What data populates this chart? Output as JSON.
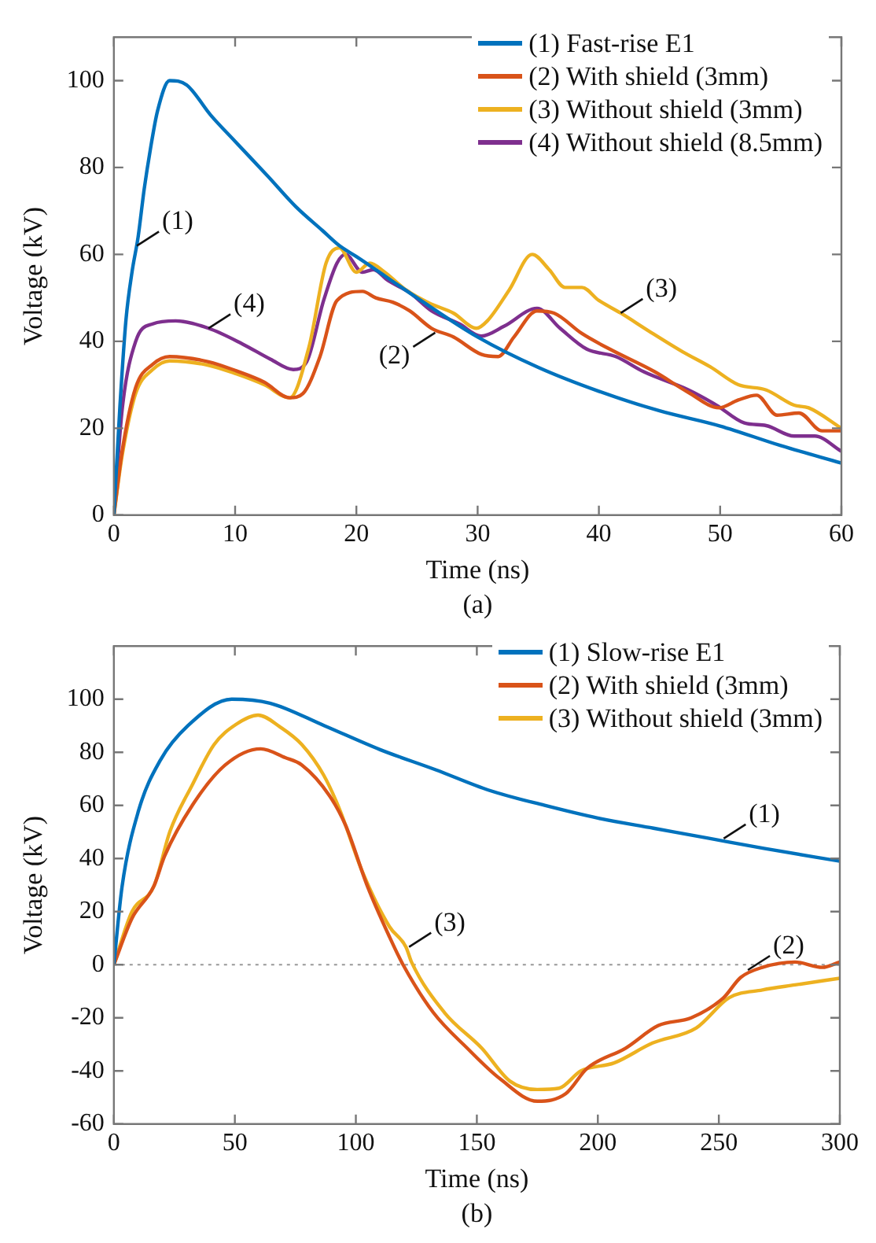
{
  "chart_data": [
    {
      "type": "line",
      "xlabel": "Time (ns)",
      "ylabel": "Voltage (kV)",
      "xlim": [
        0,
        60
      ],
      "xticks": [
        0,
        10,
        20,
        30,
        40,
        50,
        60
      ],
      "ylim": [
        0,
        110
      ],
      "yticks": [
        0,
        20,
        40,
        60,
        80,
        100
      ],
      "grid": false,
      "legend": "top right",
      "marker": "none",
      "line_style": "solid",
      "annotations": [
        {
          "text": "(1)",
          "x": 1.9,
          "y": 62
        },
        {
          "text": "(4)",
          "x": 7.8,
          "y": 43
        },
        {
          "text": "(2)",
          "x": 26.5,
          "y": 42
        },
        {
          "text": "(3)",
          "x": 41.8,
          "y": 46.5
        },
        "(a)"
      ],
      "series": [
        {
          "name": "(1) Fast-rise E1",
          "color": "#0072bd",
          "x": [
            0,
            0.5,
            1,
            1.5,
            2,
            2.5,
            3,
            3.6,
            4.6,
            6,
            8,
            10,
            12.7,
            15,
            17.2,
            18.6,
            20,
            25,
            30,
            35,
            40,
            45,
            50,
            55,
            60
          ],
          "values": [
            0,
            25,
            45,
            56,
            64,
            75,
            84,
            93,
            100,
            99,
            92,
            86,
            78,
            71,
            65.5,
            62,
            59.5,
            50,
            41,
            34,
            28.5,
            24,
            20.5,
            16,
            12
          ]
        },
        {
          "name": "(2) With shield (3mm)",
          "color": "#d95319",
          "x": [
            0,
            0.7,
            1.8,
            3.2,
            4.6,
            7.8,
            10.1,
            12.4,
            14.5,
            15.6,
            17,
            18.4,
            20.5,
            21.6,
            23,
            24.4,
            26.2,
            28,
            30.3,
            31.7,
            33,
            34.9,
            36.3,
            38.6,
            40.9,
            44.6,
            47.4,
            49.9,
            51.5,
            53,
            54.7,
            56.5,
            58.4,
            60
          ],
          "values": [
            0,
            15,
            29.4,
            34.7,
            36.5,
            35.3,
            33.2,
            30.6,
            27,
            28,
            36.5,
            49.4,
            51.5,
            50,
            49,
            47,
            43,
            41,
            37,
            36.5,
            41,
            47,
            46.5,
            41.8,
            38.2,
            33,
            28.2,
            24.7,
            26.5,
            27.6,
            23,
            23.5,
            19.4,
            19.4
          ]
        },
        {
          "name": "(3) Without shield (3mm)",
          "color": "#edb120",
          "x": [
            0,
            0.7,
            1.8,
            3.2,
            4.6,
            7.8,
            10.1,
            12.4,
            14.5,
            16.1,
            17.5,
            18.6,
            20,
            21.1,
            22.3,
            24.1,
            26,
            28,
            29.9,
            30.8,
            32.6,
            34.5,
            35.9,
            37.2,
            38.6,
            40,
            41.8,
            44.1,
            46.9,
            49.2,
            51.5,
            53.8,
            56.1,
            57.3,
            60
          ],
          "values": [
            0,
            14,
            28,
            33.5,
            35.5,
            34.5,
            32.5,
            30,
            27,
            38.8,
            58,
            61.5,
            55.9,
            58,
            56,
            51.8,
            48.8,
            46.5,
            43,
            44.7,
            51.8,
            60,
            56.5,
            52.4,
            52.4,
            49.4,
            46.5,
            42.4,
            37.6,
            34.1,
            30,
            28.8,
            25.3,
            24.7,
            20
          ]
        },
        {
          "name": "(4) Without shield (8.5mm)",
          "color": "#7e2f8e",
          "x": [
            0,
            0.7,
            1.8,
            3.2,
            5.1,
            7.8,
            10.6,
            12.9,
            14.8,
            15.9,
            17.3,
            18.4,
            19.1,
            20.5,
            21.4,
            22.6,
            24.4,
            26.2,
            28.5,
            30.3,
            32.2,
            34.9,
            36.8,
            39,
            41.4,
            43.7,
            47.4,
            49.7,
            52,
            53.8,
            56.1,
            57.8,
            60
          ],
          "values": [
            0,
            24.7,
            40,
            44,
            44.7,
            43,
            39.4,
            35.9,
            33.5,
            35.3,
            49.4,
            58,
            60,
            55.9,
            56.5,
            54,
            51.2,
            47,
            44,
            41.2,
            43.5,
            47.6,
            43,
            38.2,
            36.5,
            33,
            28.8,
            25.3,
            21.2,
            20.6,
            18.2,
            18.2,
            14.7
          ]
        }
      ]
    },
    {
      "type": "line",
      "xlabel": "Time (ns)",
      "ylabel": "Voltage (kV)",
      "xlim": [
        0,
        300
      ],
      "xticks": [
        0,
        50,
        100,
        150,
        200,
        250,
        300
      ],
      "ylim": [
        -60,
        120
      ],
      "yticks": [
        -60,
        -40,
        -20,
        0,
        20,
        40,
        60,
        80,
        100
      ],
      "grid": false,
      "legend": "top right",
      "marker": "none",
      "line_style": "solid",
      "ref_lines": [
        {
          "axis": "y",
          "value": 0,
          "color": "#999999",
          "line_style": "dotted"
        }
      ],
      "annotations": [
        {
          "text": "(1)",
          "x": 252,
          "y": 47.5
        },
        {
          "text": "(3)",
          "x": 122,
          "y": 6.7
        },
        {
          "text": "(2)",
          "x": 262,
          "y": -2
        },
        "(b)"
      ],
      "series": [
        {
          "name": "(1) Slow-rise E1",
          "color": "#0072bd",
          "x": [
            0,
            3.4,
            10.2,
            19.2,
            30.6,
            48.7,
            64.5,
            87,
            110,
            133,
            155,
            178,
            200,
            223,
            246,
            268.6,
            300
          ],
          "values": [
            0,
            29.5,
            58,
            77,
            90,
            100,
            98.5,
            90,
            81,
            73.4,
            65.7,
            60,
            55.2,
            51.4,
            47.6,
            43.8,
            39
          ]
        },
        {
          "name": "(2) With shield (3mm)",
          "color": "#d95319",
          "x": [
            0,
            7.5,
            16.5,
            21,
            32.4,
            46,
            60.7,
            70.8,
            77.7,
            89,
            95.8,
            104.8,
            113.9,
            119.5,
            132,
            146,
            159.5,
            175,
            186.7,
            195.6,
            211.5,
            225,
            238.6,
            252,
            259,
            268,
            281.5,
            292.8,
            300
          ],
          "values": [
            0,
            17.5,
            29.5,
            41,
            60,
            75.2,
            81.3,
            78,
            75.2,
            63.8,
            52.4,
            29.5,
            10.5,
            0,
            -18,
            -31.4,
            -42.9,
            -51.4,
            -48.6,
            -39,
            -31.4,
            -22.9,
            -20,
            -12.4,
            -4.8,
            -1,
            1,
            -1,
            1
          ]
        },
        {
          "name": "(3) Without shield (3mm)",
          "color": "#edb120",
          "x": [
            0,
            7.5,
            16.5,
            23.3,
            32.4,
            41.4,
            50.5,
            59.6,
            68.6,
            77.7,
            86.7,
            93.5,
            102.6,
            113.9,
            120.7,
            123,
            136.6,
            152,
            163.6,
            174.9,
            184,
            193,
            206.7,
            222.6,
            240.7,
            254.3,
            268,
            281.5,
            300
          ],
          "values": [
            0,
            20,
            29.5,
            50.5,
            67.7,
            82.9,
            90.5,
            94,
            89.6,
            82.9,
            71.4,
            58,
            35.2,
            14.3,
            6.7,
            1,
            -18,
            -31.4,
            -43.8,
            -47,
            -46.5,
            -40,
            -37,
            -29.5,
            -23.8,
            -12.4,
            -9.5,
            -7.6,
            -5.1
          ]
        }
      ]
    }
  ]
}
